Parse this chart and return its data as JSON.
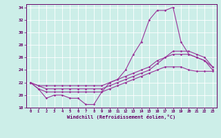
{
  "xlabel": "Windchill (Refroidissement éolien,°C)",
  "background_color": "#cceee8",
  "line_color": "#993399",
  "grid_color": "#ffffff",
  "xlim": [
    -0.5,
    23.5
  ],
  "ylim": [
    18,
    34.5
  ],
  "yticks": [
    18,
    20,
    22,
    24,
    26,
    28,
    30,
    32,
    34
  ],
  "xticks": [
    0,
    1,
    2,
    3,
    4,
    5,
    6,
    7,
    8,
    9,
    10,
    11,
    12,
    13,
    14,
    15,
    16,
    17,
    18,
    19,
    20,
    21,
    22,
    23
  ],
  "series1": {
    "x": [
      0,
      1,
      2,
      3,
      4,
      5,
      6,
      7,
      8,
      9,
      10,
      11,
      12,
      13,
      14,
      15,
      16,
      17,
      18,
      19,
      20,
      21,
      22,
      23
    ],
    "y": [
      22.0,
      21.0,
      19.5,
      20.0,
      20.0,
      19.5,
      19.5,
      18.5,
      18.5,
      20.5,
      22.0,
      22.5,
      24.0,
      26.5,
      28.5,
      32.0,
      33.5,
      33.5,
      34.0,
      28.5,
      26.5,
      26.0,
      25.5,
      24.0
    ]
  },
  "series2": {
    "x": [
      0,
      1,
      2,
      3,
      4,
      5,
      6,
      7,
      8,
      9,
      10,
      11,
      12,
      13,
      14,
      15,
      16,
      17,
      18,
      19,
      20,
      21,
      22,
      23
    ],
    "y": [
      22.0,
      21.5,
      21.0,
      21.0,
      21.0,
      21.0,
      21.0,
      21.0,
      21.0,
      21.0,
      21.5,
      22.0,
      22.5,
      23.0,
      23.5,
      24.0,
      25.0,
      26.0,
      26.5,
      26.5,
      26.5,
      26.0,
      25.5,
      24.5
    ]
  },
  "series3": {
    "x": [
      0,
      1,
      2,
      3,
      4,
      5,
      6,
      7,
      8,
      9,
      10,
      11,
      12,
      13,
      14,
      15,
      16,
      17,
      18,
      19,
      20,
      21,
      22,
      23
    ],
    "y": [
      22.0,
      21.0,
      20.5,
      20.5,
      20.5,
      20.5,
      20.5,
      20.5,
      20.5,
      20.5,
      21.0,
      21.5,
      22.0,
      22.5,
      23.0,
      23.5,
      24.0,
      24.5,
      24.5,
      24.5,
      24.0,
      23.8,
      23.8,
      23.8
    ]
  },
  "series4": {
    "x": [
      0,
      1,
      2,
      3,
      4,
      5,
      6,
      7,
      8,
      9,
      10,
      11,
      12,
      13,
      14,
      15,
      16,
      17,
      18,
      19,
      20,
      21,
      22,
      23
    ],
    "y": [
      22.0,
      21.5,
      21.5,
      21.5,
      21.5,
      21.5,
      21.5,
      21.5,
      21.5,
      21.5,
      22.0,
      22.5,
      23.0,
      23.5,
      24.0,
      24.5,
      25.5,
      26.0,
      27.0,
      27.0,
      27.0,
      26.5,
      26.0,
      24.5
    ]
  }
}
